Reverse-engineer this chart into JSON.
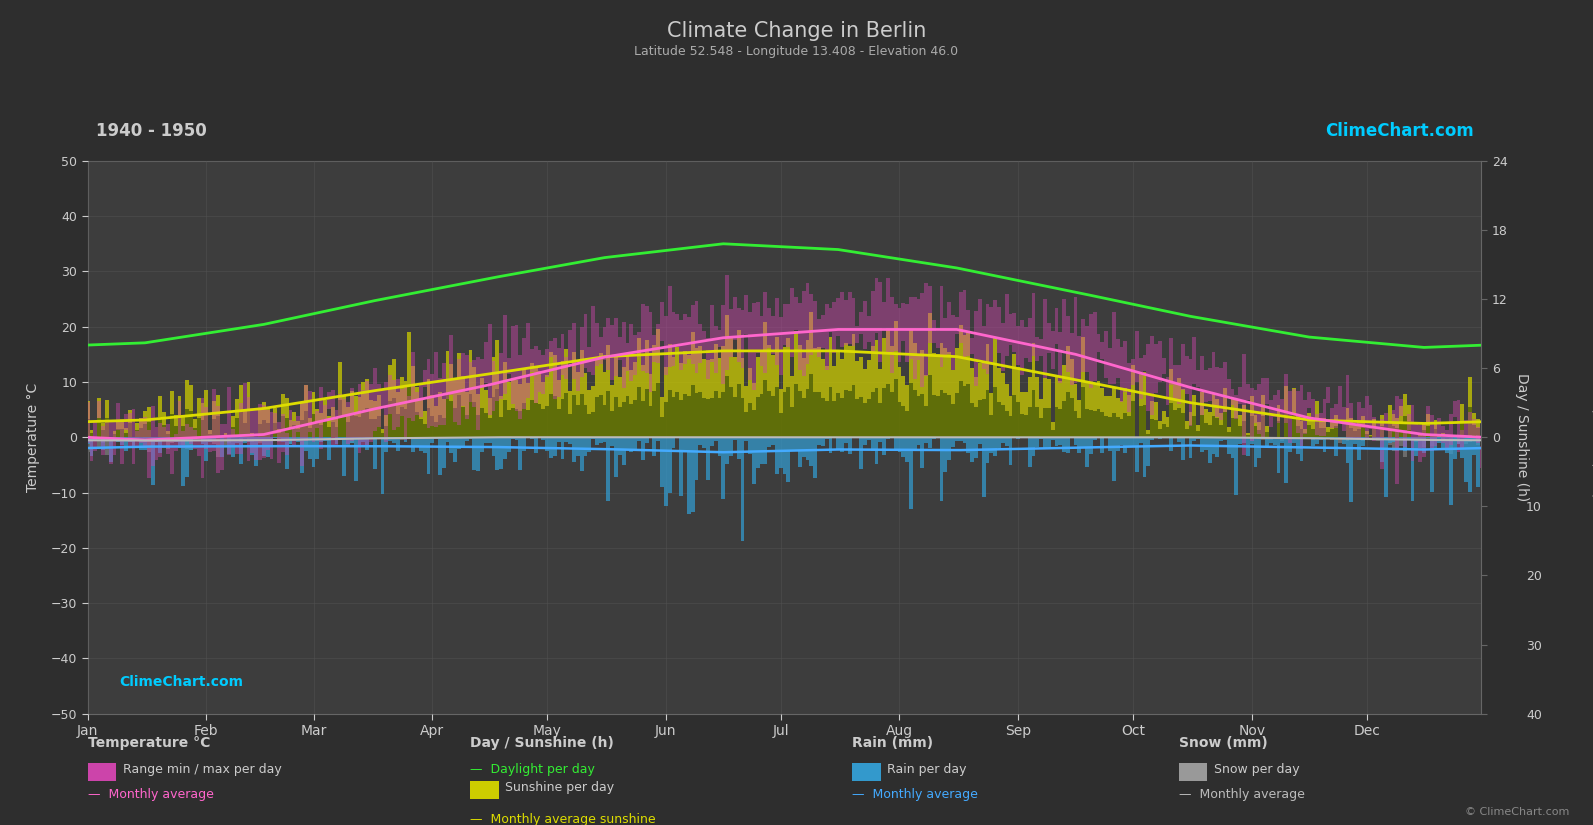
{
  "title": "Climate Change in Berlin",
  "subtitle": "Latitude 52.548 - Longitude 13.408 - Elevation 46.0",
  "period": "1940 - 1950",
  "background_color": "#2e2e2e",
  "plot_bg_color": "#3d3d3d",
  "text_color": "#cccccc",
  "grid_color": "#555555",
  "months": [
    "Jan",
    "Feb",
    "Mar",
    "Apr",
    "May",
    "Jun",
    "Jul",
    "Aug",
    "Sep",
    "Oct",
    "Nov",
    "Dec"
  ],
  "month_centers": [
    15,
    46,
    74,
    105,
    135,
    166,
    196,
    227,
    258,
    288,
    319,
    349
  ],
  "month_starts": [
    0,
    31,
    59,
    90,
    120,
    151,
    181,
    212,
    243,
    273,
    304,
    334
  ],
  "temp_min_monthly": [
    -3.5,
    -3.0,
    1.0,
    5.5,
    10.5,
    13.5,
    15.5,
    15.0,
    11.0,
    6.0,
    1.5,
    -2.0
  ],
  "temp_max_monthly": [
    2.0,
    4.0,
    9.0,
    15.0,
    20.0,
    23.0,
    25.0,
    25.0,
    20.0,
    13.0,
    6.0,
    2.5
  ],
  "temp_avg_monthly": [
    -0.5,
    0.5,
    5.0,
    9.5,
    14.5,
    18.0,
    19.5,
    19.5,
    15.0,
    9.0,
    3.5,
    0.5
  ],
  "daylight_monthly": [
    8.2,
    9.8,
    11.8,
    13.8,
    15.6,
    16.8,
    16.3,
    14.7,
    12.6,
    10.5,
    8.7,
    7.8
  ],
  "sunshine_monthly": [
    1.5,
    2.5,
    4.0,
    5.5,
    7.0,
    7.5,
    7.5,
    7.0,
    5.0,
    3.0,
    1.5,
    1.2
  ],
  "rain_monthly_mm": [
    42,
    36,
    40,
    42,
    53,
    65,
    55,
    58,
    45,
    37,
    44,
    55
  ],
  "snow_monthly_mm": [
    15,
    12,
    5,
    0,
    0,
    0,
    0,
    0,
    0,
    0,
    4,
    12
  ],
  "temp_ylim": [
    -50,
    50
  ],
  "sunshine_right_ticks": [
    0,
    6,
    12,
    18,
    24
  ],
  "rain_right_ticks": [
    0,
    10,
    20,
    30,
    40
  ],
  "color_green": "#33ee33",
  "color_yellow": "#dddd00",
  "color_pink": "#ff66cc",
  "color_blue": "#44aaff",
  "color_white": "#bbbbbb",
  "color_rain_bar": "#3399cc",
  "color_snow_bar": "#999999",
  "color_temp_bar": "#cc44aa",
  "color_sunshine_bar_top": "#cccc00",
  "color_sunshine_bar_bot": "#667700",
  "logo_color": "#00ccff",
  "logo_text": "ClimeChart.com",
  "copyright_text": "© ClimeChart.com"
}
